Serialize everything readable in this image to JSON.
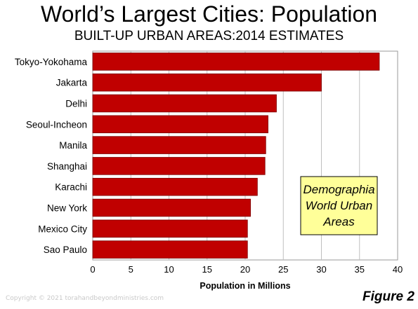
{
  "header": {
    "title": "World’s Largest Cities: Population",
    "subtitle": "BUILT-UP URBAN AREAS:2014 ESTIMATES"
  },
  "annotation": {
    "lines": [
      "Demographia",
      "World Urban",
      "Areas"
    ]
  },
  "footer": {
    "copyright": "Copyright © 2021 torahandbeyondministries.com",
    "figure_label": "Figure 2"
  },
  "colors": {
    "bar": "#c00000",
    "bar_edge": "#7a0000",
    "annotation_fill": "#ffff99",
    "grid": "#bfbfbf"
  },
  "chart_data": {
    "type": "bar",
    "orientation": "horizontal",
    "title": "World’s Largest Cities: Population",
    "subtitle": "BUILT-UP URBAN AREAS:2014 ESTIMATES",
    "xlabel": "Population in Millions",
    "ylabel": "",
    "categories": [
      "Tokyo-Yokohama",
      "Jakarta",
      "Delhi",
      "Seoul-Incheon",
      "Manila",
      "Shanghai",
      "Karachi",
      "New York",
      "Mexico City",
      "Sao Paulo"
    ],
    "values": [
      37.6,
      30.0,
      24.1,
      23.0,
      22.7,
      22.6,
      21.6,
      20.7,
      20.3,
      20.3
    ],
    "xlim": [
      0,
      40
    ],
    "xticks": [
      "0",
      "5",
      "10",
      "15",
      "20",
      "25",
      "30",
      "35",
      "40"
    ],
    "grid": true
  }
}
